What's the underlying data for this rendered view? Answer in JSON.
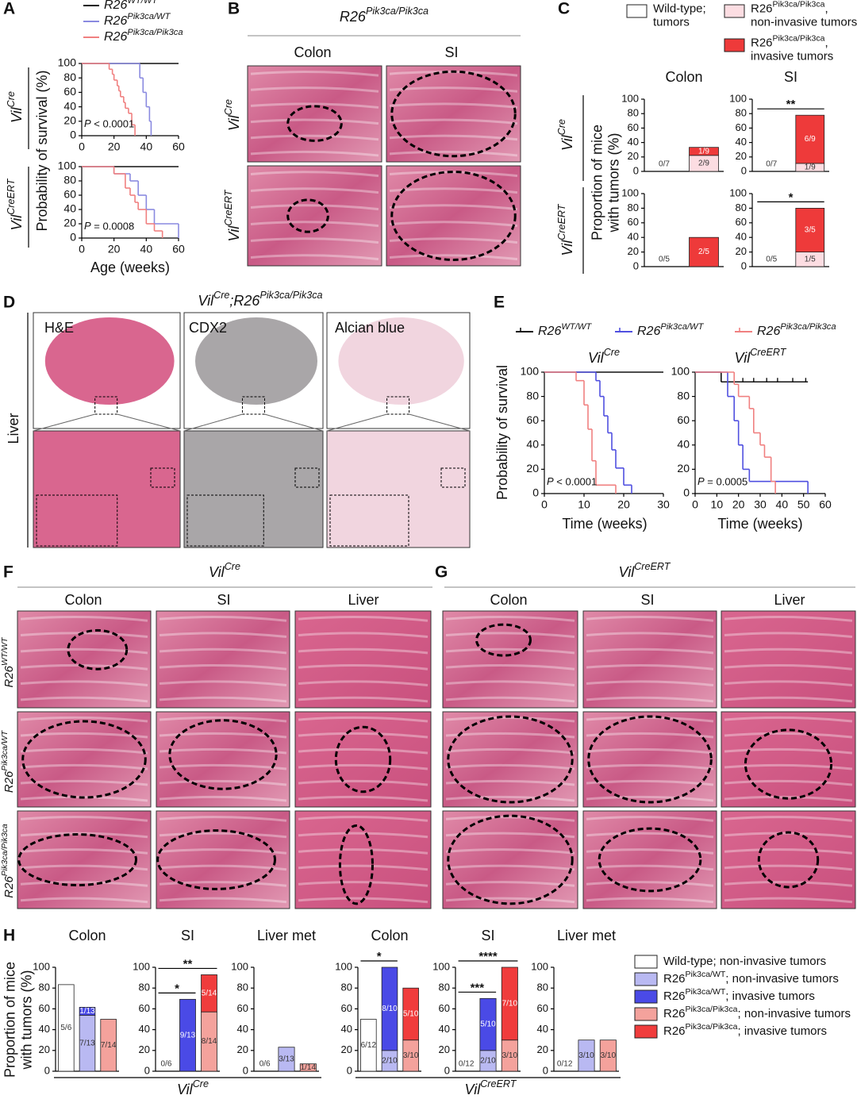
{
  "figure": {
    "letters": [
      "A",
      "B",
      "C",
      "D",
      "E",
      "F",
      "G",
      "H"
    ],
    "a_rows": [
      "VilCre",
      "VilCreERT"
    ],
    "b_title": "R26Pik3ca/Pik3ca",
    "b_columns": [
      "Colon",
      "SI"
    ],
    "b_rows": [
      "VilCre",
      "VilCreERT"
    ],
    "c_rows": [
      "VilCre",
      "VilCreERT"
    ],
    "d_title": "VilCre;R26Pik3ca/Pik3ca",
    "d_stains": [
      "H&E",
      "CDX2",
      "Alcian blue"
    ],
    "d_row": "Liver",
    "f_title": "VilCre",
    "f_columns": [
      "Colon",
      "SI",
      "Liver"
    ],
    "f_rows": [
      "R26WT/WT",
      "R26Pik3ca/WT",
      "R26Pik3ca/Pik3ca"
    ],
    "g_title": "VilCreERT",
    "g_columns": [
      "Colon",
      "SI",
      "Liver"
    ],
    "h_groups": [
      "VilCre",
      "VilCreERT"
    ]
  },
  "chart_data": [
    {
      "type": "survival",
      "y_label": "Probability of survival (%)",
      "annotation": "P < 0.0001",
      "xlim": [
        0,
        60
      ],
      "xticks": [
        0,
        20,
        40,
        60
      ],
      "ylim": [
        0,
        100
      ],
      "yticks": [
        0,
        20,
        40,
        60,
        80,
        100
      ],
      "series": [
        {
          "name": "R26WT/WT",
          "color": "#111111",
          "x": [
            0,
            60
          ],
          "values": [
            100,
            100
          ]
        },
        {
          "name": "R26Pik3ca/WT",
          "color": "#8a8ae0",
          "x": [
            0,
            36,
            38,
            40,
            42,
            43
          ],
          "values": [
            100,
            80,
            60,
            40,
            20,
            0
          ]
        },
        {
          "name": "R26Pik3ca/Pik3ca",
          "color": "#f08080",
          "x": [
            0,
            17,
            19,
            20,
            22,
            23,
            24,
            26,
            27,
            29,
            31,
            33
          ],
          "values": [
            100,
            92,
            85,
            77,
            69,
            62,
            54,
            46,
            38,
            31,
            15,
            0
          ]
        }
      ]
    },
    {
      "type": "survival",
      "x_label": "Age (weeks)",
      "annotation": "P = 0.0008",
      "xlim": [
        0,
        60
      ],
      "xticks": [
        0,
        20,
        40,
        60
      ],
      "ylim": [
        0,
        100
      ],
      "yticks": [
        0,
        20,
        40,
        60,
        80,
        100
      ],
      "series": [
        {
          "color": "#111111",
          "x": [
            0,
            60
          ],
          "values": [
            100,
            100
          ]
        },
        {
          "color": "#8a8ae0",
          "x": [
            0,
            20,
            30,
            35,
            40,
            45,
            60
          ],
          "values": [
            100,
            90,
            80,
            60,
            40,
            20,
            0
          ]
        },
        {
          "color": "#f08080",
          "x": [
            0,
            20,
            27,
            30,
            33,
            35,
            40,
            45,
            50
          ],
          "values": [
            100,
            90,
            70,
            60,
            50,
            40,
            20,
            10,
            0
          ]
        }
      ]
    },
    {
      "type": "bar",
      "stacked": true,
      "title": "Colon",
      "y_label": "Proportion of mice with tumors (%)",
      "categories": [
        null,
        null
      ],
      "ylim": [
        0,
        100
      ],
      "yticks": [
        0,
        20,
        40,
        60,
        80,
        100
      ],
      "series": [
        {
          "name": "Wild-type; tumors",
          "color": "#ffffff",
          "values": [
            0,
            null
          ],
          "value_labels": [
            "0/7",
            null
          ]
        },
        {
          "name": "R26Pik3ca/Pik3ca, non-invasive tumors",
          "color": "#fcdde2",
          "values": [
            null,
            22.2
          ],
          "value_labels": [
            null,
            "2/9"
          ]
        },
        {
          "name": "R26Pik3ca/Pik3ca, invasive tumors",
          "color": "#ee3a3a",
          "values": [
            null,
            11.1
          ],
          "value_labels": [
            null,
            "1/9"
          ]
        }
      ]
    },
    {
      "type": "bar",
      "stacked": true,
      "title": "SI",
      "significance": [
        "**"
      ],
      "categories": [
        null,
        null
      ],
      "ylim": [
        0,
        100
      ],
      "yticks": [
        0,
        20,
        40,
        60,
        80,
        100
      ],
      "series": [
        {
          "color": "#ffffff",
          "values": [
            0,
            null
          ],
          "value_labels": [
            "0/7",
            null
          ]
        },
        {
          "color": "#fcdde2",
          "values": [
            null,
            11.1
          ],
          "value_labels": [
            null,
            "1/9"
          ]
        },
        {
          "color": "#ee3a3a",
          "values": [
            null,
            66.7
          ],
          "value_labels": [
            null,
            "6/9"
          ]
        }
      ]
    },
    {
      "type": "bar",
      "stacked": true,
      "categories": [
        null,
        null
      ],
      "ylim": [
        0,
        100
      ],
      "yticks": [
        0,
        20,
        40,
        60,
        80,
        100
      ],
      "series": [
        {
          "color": "#ffffff",
          "values": [
            0,
            null
          ],
          "value_labels": [
            "0/5",
            null
          ]
        },
        {
          "color": "#fcdde2",
          "values": [
            null,
            null
          ]
        },
        {
          "color": "#ee3a3a",
          "values": [
            null,
            40
          ],
          "value_labels": [
            null,
            "2/5"
          ]
        }
      ]
    },
    {
      "type": "bar",
      "stacked": true,
      "significance": [
        "*"
      ],
      "categories": [
        null,
        null
      ],
      "ylim": [
        0,
        100
      ],
      "yticks": [
        0,
        20,
        40,
        60,
        80,
        100
      ],
      "series": [
        {
          "color": "#ffffff",
          "values": [
            0,
            null
          ],
          "value_labels": [
            "0/5",
            null
          ]
        },
        {
          "color": "#fcdde2",
          "values": [
            null,
            20
          ],
          "value_labels": [
            null,
            "1/5"
          ]
        },
        {
          "color": "#ee3a3a",
          "values": [
            null,
            60
          ],
          "value_labels": [
            null,
            "3/5"
          ]
        }
      ]
    },
    {
      "type": "survival",
      "title": "VilCre",
      "y_label": "Probability of survival",
      "x_label": "Time (weeks)",
      "annotation": "P < 0.0001",
      "xlim": [
        0,
        30
      ],
      "xticks": [
        0,
        10,
        20,
        30
      ],
      "ylim": [
        0,
        100
      ],
      "yticks": [
        0,
        20,
        40,
        60,
        80,
        100
      ],
      "series": [
        {
          "name": "R26WT/WT",
          "color": "#111111",
          "x": [
            0,
            30
          ],
          "values": [
            100,
            100
          ]
        },
        {
          "name": "R26Pik3ca/WT",
          "color": "#5050e0",
          "x": [
            0,
            13,
            14,
            15,
            16,
            17,
            18,
            20,
            22
          ],
          "values": [
            100,
            93,
            80,
            64,
            50,
            36,
            21,
            7,
            0
          ]
        },
        {
          "name": "R26Pik3ca/Pik3ca",
          "color": "#f08080",
          "x": [
            0,
            8,
            10,
            11,
            12,
            13,
            18
          ],
          "values": [
            100,
            93,
            73,
            53,
            27,
            7,
            0
          ]
        }
      ]
    },
    {
      "type": "survival",
      "title": "VilCreERT",
      "x_label": "Time (weeks)",
      "annotation": "P = 0.0005",
      "xlim": [
        0,
        60
      ],
      "xticks": [
        0,
        10,
        20,
        30,
        40,
        50,
        60
      ],
      "ylim": [
        0,
        100
      ],
      "yticks": [
        0,
        20,
        40,
        60,
        80,
        100
      ],
      "series": [
        {
          "color": "#111111",
          "x": [
            0,
            12,
            52
          ],
          "values": [
            100,
            92,
            92
          ],
          "censored": [
            22,
            27,
            33,
            38,
            45,
            51
          ]
        },
        {
          "color": "#5050e0",
          "x": [
            0,
            15,
            18,
            20,
            22,
            25,
            52
          ],
          "values": [
            100,
            80,
            60,
            40,
            20,
            10,
            0
          ]
        },
        {
          "color": "#f08080",
          "x": [
            0,
            18,
            20,
            25,
            27,
            30,
            32,
            35,
            37
          ],
          "values": [
            100,
            90,
            80,
            70,
            50,
            40,
            30,
            10,
            0
          ]
        }
      ]
    },
    {
      "type": "bar",
      "stacked": true,
      "title": "Colon",
      "y_label": "Proportion of mice with tumors (%)",
      "categories": [
        null,
        null,
        null
      ],
      "ylim": [
        0,
        100
      ],
      "yticks": [
        0,
        20,
        40,
        60,
        80,
        100
      ],
      "series": [
        {
          "name": "Wild-type; non-invasive tumors",
          "color": "#ffffff",
          "values": [
            83.3,
            null,
            null
          ],
          "value_labels": [
            "5/6",
            null,
            null
          ]
        },
        {
          "name": "R26Pik3ca/WT; non-invasive tumors",
          "color": "#b9b9f2",
          "values": [
            null,
            53.8,
            null
          ],
          "value_labels": [
            null,
            "7/13",
            null
          ]
        },
        {
          "name": "R26Pik3ca/WT; invasive tumors",
          "color": "#4a4ae6",
          "values": [
            null,
            7.7,
            null
          ],
          "value_labels": [
            null,
            "1/13",
            null
          ]
        },
        {
          "name": "R26Pik3ca/Pik3ca; non-invasive tumors",
          "color": "#f4a29c",
          "values": [
            null,
            null,
            50
          ],
          "value_labels": [
            null,
            null,
            "7/14"
          ]
        },
        {
          "name": "R26Pik3ca/Pik3ca; invasive tumors",
          "color": "#f03c3c",
          "values": [
            null,
            null,
            null
          ]
        }
      ]
    },
    {
      "type": "bar",
      "stacked": true,
      "title": "SI",
      "significance": [
        "*",
        "**"
      ],
      "categories": [
        null,
        null,
        null
      ],
      "ylim": [
        0,
        100
      ],
      "yticks": [
        0,
        20,
        40,
        60,
        80,
        100
      ],
      "series": [
        {
          "color": "#ffffff",
          "values": [
            0,
            null,
            null
          ],
          "value_labels": [
            "0/6",
            null,
            null
          ]
        },
        {
          "color": "#b9b9f2",
          "values": [
            null,
            null,
            null
          ]
        },
        {
          "color": "#4a4ae6",
          "values": [
            null,
            69.2,
            null
          ],
          "value_labels": [
            null,
            "9/13",
            null
          ]
        },
        {
          "color": "#f4a29c",
          "values": [
            null,
            null,
            57.1
          ],
          "value_labels": [
            null,
            null,
            "8/14"
          ]
        },
        {
          "color": "#f03c3c",
          "values": [
            null,
            null,
            35.7
          ],
          "value_labels": [
            null,
            null,
            "5/14"
          ]
        }
      ]
    },
    {
      "type": "bar",
      "stacked": true,
      "title": "Liver met",
      "categories": [
        null,
        null,
        null
      ],
      "ylim": [
        0,
        100
      ],
      "yticks": [
        0,
        20,
        40,
        60,
        80,
        100
      ],
      "series": [
        {
          "color": "#ffffff",
          "values": [
            0,
            null,
            null
          ],
          "value_labels": [
            "0/6",
            null,
            null
          ]
        },
        {
          "color": "#b9b9f2",
          "values": [
            null,
            23.1,
            null
          ],
          "value_labels": [
            null,
            "3/13",
            null
          ]
        },
        {
          "color": "#4a4ae6",
          "values": [
            null,
            null,
            null
          ]
        },
        {
          "color": "#f4a29c",
          "values": [
            null,
            null,
            7.1
          ],
          "value_labels": [
            null,
            null,
            "1/14"
          ]
        },
        {
          "color": "#f03c3c",
          "values": [
            null,
            null,
            null
          ]
        }
      ]
    },
    {
      "type": "bar",
      "stacked": true,
      "title": "Colon",
      "significance": [
        "*"
      ],
      "categories": [
        null,
        null,
        null
      ],
      "ylim": [
        0,
        100
      ],
      "yticks": [
        0,
        20,
        40,
        60,
        80,
        100
      ],
      "series": [
        {
          "color": "#ffffff",
          "values": [
            50,
            null,
            null
          ],
          "value_labels": [
            "6/12",
            null,
            null
          ]
        },
        {
          "color": "#b9b9f2",
          "values": [
            null,
            20,
            null
          ],
          "value_labels": [
            null,
            "2/10",
            null
          ]
        },
        {
          "color": "#4a4ae6",
          "values": [
            null,
            80,
            null
          ],
          "value_labels": [
            null,
            "8/10",
            null
          ]
        },
        {
          "color": "#f4a29c",
          "values": [
            null,
            null,
            30
          ],
          "value_labels": [
            null,
            null,
            "3/10"
          ]
        },
        {
          "color": "#f03c3c",
          "values": [
            null,
            null,
            50
          ],
          "value_labels": [
            null,
            null,
            "5/10"
          ]
        }
      ]
    },
    {
      "type": "bar",
      "stacked": true,
      "title": "SI",
      "significance": [
        "***",
        "****"
      ],
      "categories": [
        null,
        null,
        null
      ],
      "ylim": [
        0,
        100
      ],
      "yticks": [
        0,
        20,
        40,
        60,
        80,
        100
      ],
      "series": [
        {
          "color": "#ffffff",
          "values": [
            0,
            null,
            null
          ],
          "value_labels": [
            "0/12",
            null,
            null
          ]
        },
        {
          "color": "#b9b9f2",
          "values": [
            null,
            20,
            null
          ],
          "value_labels": [
            null,
            "2/10",
            null
          ]
        },
        {
          "color": "#4a4ae6",
          "values": [
            null,
            50,
            null
          ],
          "value_labels": [
            null,
            "5/10",
            null
          ]
        },
        {
          "color": "#f4a29c",
          "values": [
            null,
            null,
            30
          ],
          "value_labels": [
            null,
            null,
            "3/10"
          ]
        },
        {
          "color": "#f03c3c",
          "values": [
            null,
            null,
            70
          ],
          "value_labels": [
            null,
            null,
            "7/10"
          ]
        }
      ]
    },
    {
      "type": "bar",
      "stacked": true,
      "title": "Liver met",
      "categories": [
        null,
        null,
        null
      ],
      "ylim": [
        0,
        100
      ],
      "yticks": [
        0,
        20,
        40,
        60,
        80,
        100
      ],
      "series": [
        {
          "color": "#ffffff",
          "values": [
            0,
            null,
            null
          ],
          "value_labels": [
            "0/12",
            null,
            null
          ]
        },
        {
          "color": "#b9b9f2",
          "values": [
            null,
            30,
            null
          ],
          "value_labels": [
            null,
            "3/10",
            null
          ]
        },
        {
          "color": "#4a4ae6",
          "values": [
            null,
            null,
            null
          ]
        },
        {
          "color": "#f4a29c",
          "values": [
            null,
            null,
            30
          ],
          "value_labels": [
            null,
            null,
            "3/10"
          ]
        },
        {
          "color": "#f03c3c",
          "values": [
            null,
            null,
            null
          ]
        }
      ]
    }
  ]
}
